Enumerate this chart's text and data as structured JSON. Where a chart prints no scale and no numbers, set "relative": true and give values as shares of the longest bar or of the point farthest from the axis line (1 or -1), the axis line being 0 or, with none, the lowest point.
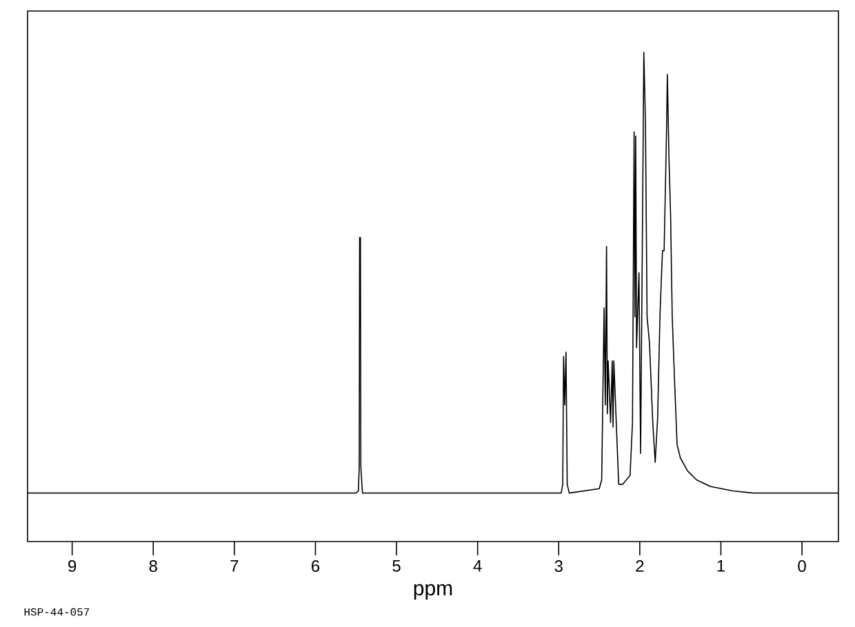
{
  "chart_data": {
    "type": "line",
    "relative": true,
    "xlabel": "ppm",
    "color": "#000000",
    "annotations": [
      "HSP-44-057"
    ],
    "xlim": [
      9.55,
      -0.45
    ],
    "xticks": [
      9,
      8,
      7,
      6,
      5,
      4,
      3,
      2,
      1,
      0
    ],
    "x": [
      9.55,
      5.5,
      5.47,
      5.46,
      5.455,
      5.445,
      5.44,
      5.42,
      2.97,
      2.95,
      2.94,
      2.925,
      2.91,
      2.895,
      2.87,
      2.5,
      2.47,
      2.46,
      2.44,
      2.425,
      2.41,
      2.4,
      2.39,
      2.36,
      2.34,
      2.33,
      2.32,
      2.29,
      2.26,
      2.21,
      2.12,
      2.09,
      2.07,
      2.06,
      2.05,
      2.04,
      2.01,
      1.99,
      1.97,
      1.95,
      1.93,
      1.91,
      1.88,
      1.84,
      1.81,
      1.78,
      1.75,
      1.72,
      1.7,
      1.67,
      1.66,
      1.64,
      1.62,
      1.6,
      1.57,
      1.54,
      1.5,
      1.41,
      1.3,
      1.13,
      0.85,
      0.6,
      -0.45
    ],
    "values": [
      0,
      0,
      0.005,
      0.06,
      0.58,
      0.58,
      0.06,
      0,
      0,
      0.02,
      0.31,
      0.2,
      0.32,
      0.02,
      0,
      0.01,
      0.03,
      0.16,
      0.42,
      0.2,
      0.56,
      0.18,
      0.3,
      0.16,
      0.3,
      0.15,
      0.3,
      0.16,
      0.02,
      0.02,
      0.04,
      0.16,
      0.82,
      0.4,
      0.81,
      0.33,
      0.5,
      0.09,
      0.53,
      1.0,
      0.84,
      0.4,
      0.34,
      0.16,
      0.07,
      0.17,
      0.41,
      0.55,
      0.55,
      0.82,
      0.95,
      0.76,
      0.63,
      0.4,
      0.25,
      0.11,
      0.08,
      0.05,
      0.03,
      0.015,
      0.005,
      0,
      0
    ]
  }
}
